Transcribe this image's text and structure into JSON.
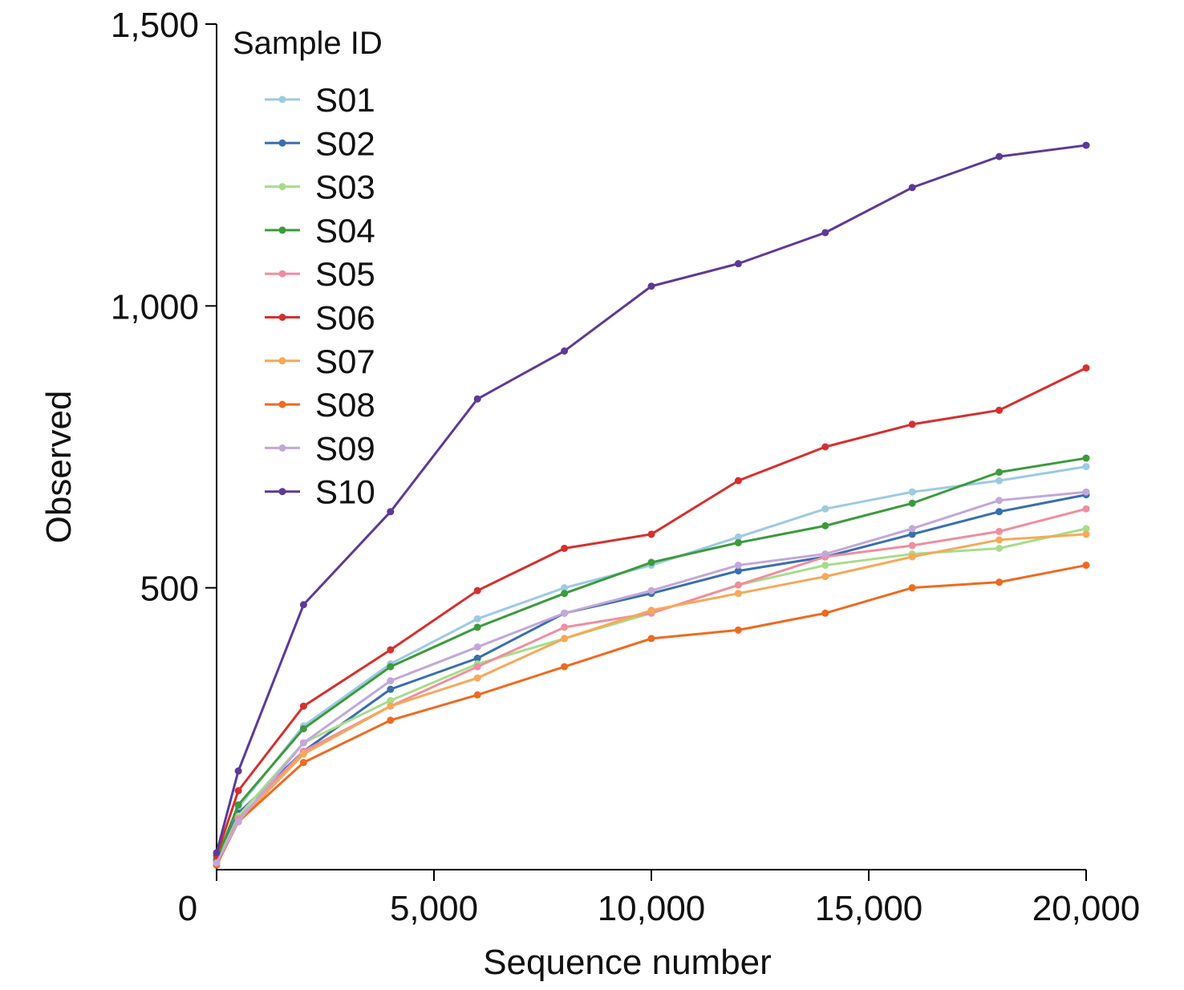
{
  "chart_data": {
    "type": "line",
    "xlabel": "Sequence number",
    "ylabel": "Observed",
    "xlim": [
      0,
      20000
    ],
    "ylim": [
      0,
      1500
    ],
    "xticks": [
      0,
      5000,
      10000,
      15000,
      20000
    ],
    "xtick_labels": [
      "0",
      "5,000",
      "10,000",
      "15,000",
      "20,000"
    ],
    "yticks": [
      500,
      1000,
      1500
    ],
    "ytick_labels": [
      "500",
      "1,000",
      "1,500"
    ],
    "grid": false,
    "legend": {
      "title": "Sample ID",
      "position": "top-left"
    },
    "x": [
      0,
      500,
      2000,
      4000,
      6000,
      8000,
      10000,
      12000,
      14000,
      16000,
      18000,
      20000
    ],
    "series": [
      {
        "name": "S01",
        "color": "#9ecae1",
        "values": [
          20,
          110,
          255,
          365,
          445,
          500,
          540,
          590,
          640,
          670,
          690,
          715
        ]
      },
      {
        "name": "S02",
        "color": "#3a6fad",
        "values": [
          15,
          100,
          210,
          320,
          375,
          455,
          490,
          530,
          555,
          595,
          635,
          665
        ]
      },
      {
        "name": "S03",
        "color": "#a8dc8a",
        "values": [
          12,
          95,
          225,
          300,
          365,
          410,
          455,
          505,
          540,
          560,
          570,
          605
        ]
      },
      {
        "name": "S04",
        "color": "#3d9a3d",
        "values": [
          18,
          115,
          250,
          360,
          430,
          490,
          545,
          580,
          610,
          650,
          705,
          730
        ]
      },
      {
        "name": "S05",
        "color": "#f08ea0",
        "values": [
          10,
          90,
          210,
          290,
          360,
          430,
          455,
          505,
          555,
          575,
          600,
          640
        ]
      },
      {
        "name": "S06",
        "color": "#d62f30",
        "values": [
          25,
          140,
          290,
          390,
          495,
          570,
          595,
          690,
          750,
          790,
          815,
          890
        ]
      },
      {
        "name": "S07",
        "color": "#f5a95a",
        "values": [
          10,
          85,
          205,
          290,
          340,
          410,
          460,
          490,
          520,
          555,
          585,
          595
        ]
      },
      {
        "name": "S08",
        "color": "#ee6a22",
        "values": [
          8,
          85,
          190,
          265,
          310,
          360,
          410,
          425,
          455,
          500,
          510,
          540
        ]
      },
      {
        "name": "S09",
        "color": "#c2a8d8",
        "values": [
          12,
          85,
          225,
          335,
          395,
          455,
          495,
          540,
          560,
          605,
          655,
          670
        ]
      },
      {
        "name": "S10",
        "color": "#5d3a96",
        "values": [
          30,
          175,
          470,
          635,
          835,
          920,
          1035,
          1075,
          1130,
          1210,
          1265,
          1285
        ]
      }
    ]
  }
}
